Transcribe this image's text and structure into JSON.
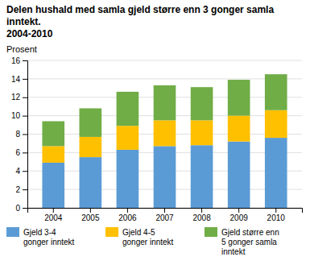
{
  "chart_data": {
    "type": "bar",
    "stacked": true,
    "title": "Delen hushald med samla gjeld større enn 3 gonger samla inntekt.",
    "subtitle": "2004-2010",
    "y_label": "Prosent",
    "categories": [
      "2004",
      "2005",
      "2006",
      "2007",
      "2008",
      "2009",
      "2010"
    ],
    "series": [
      {
        "name": "Gjeld 3-4\ngonger inntekt",
        "color": "#5b9bd5",
        "values": [
          4.9,
          5.5,
          6.3,
          6.7,
          6.8,
          7.2,
          7.6
        ]
      },
      {
        "name": "Gjeld 4-5\ngonger inntekt",
        "color": "#ffc000",
        "values": [
          1.8,
          2.2,
          2.6,
          2.8,
          2.7,
          2.8,
          3.0
        ]
      },
      {
        "name": "Gjeld større enn\n5 gonger samla\ninntekt",
        "color": "#70ad47",
        "values": [
          2.7,
          3.1,
          3.7,
          3.8,
          3.6,
          3.9,
          3.9
        ]
      }
    ],
    "ylim": [
      0,
      16
    ],
    "yticks": [
      0,
      2,
      4,
      6,
      8,
      10,
      12,
      14,
      16
    ],
    "grid": true
  }
}
